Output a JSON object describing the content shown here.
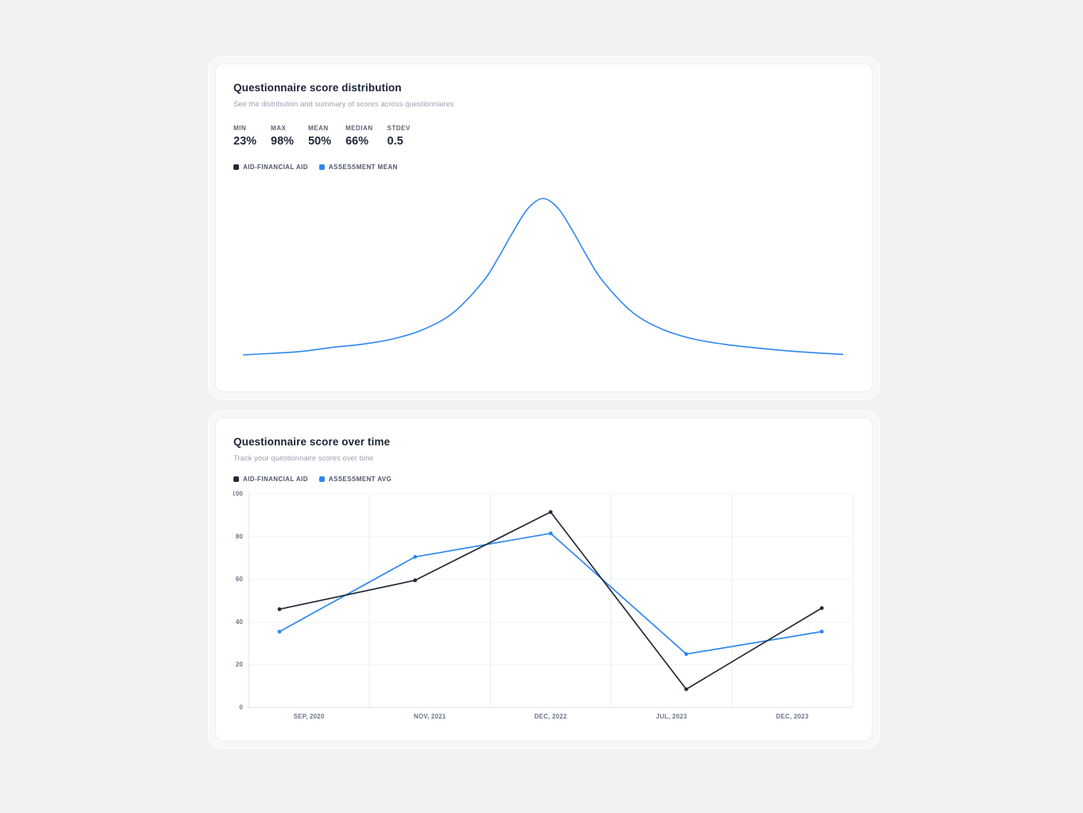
{
  "distribution": {
    "title": "Questionnaire score distribution",
    "subtitle": "See the distribution and summary of scores across questionnaires",
    "stats": [
      {
        "label": "MIN",
        "value": "23%"
      },
      {
        "label": "MAX",
        "value": "98%"
      },
      {
        "label": "MEAN",
        "value": "50%"
      },
      {
        "label": "MEDIAN",
        "value": "66%"
      },
      {
        "label": "STDEV",
        "value": "0.5"
      }
    ],
    "legend": [
      {
        "label": "AID-FINANCIAL AID",
        "color": "#232a36"
      },
      {
        "label": "ASSESSMENT MEAN",
        "color": "#2e87f0"
      }
    ]
  },
  "timeseries": {
    "title": "Questionnaire score over time",
    "subtitle": "Track your questionnaire scores over time",
    "legend": [
      {
        "label": "AID-FINANCIAL AID",
        "color": "#232a36"
      },
      {
        "label": "ASSESSMENT AVG",
        "color": "#2e87f0"
      }
    ]
  },
  "colors": {
    "series_dark": "#232a36",
    "series_blue": "#2e87f0",
    "grid_h": "#f1f3f6",
    "grid_v": "#e9ecf1",
    "axis": "#dfe3e9"
  },
  "chart_data": [
    {
      "type": "area",
      "title": "Questionnaire score distribution",
      "series_name": "ASSESSMENT MEAN",
      "line_color": "#2e87f0",
      "description": "Smooth bell-shaped density curve of questionnaire scores, peak at center, heavy symmetric tails, no visible axes",
      "summary": {
        "min": "23%",
        "max": "98%",
        "mean": "50%",
        "median": "66%",
        "stdev": "0.5"
      },
      "x_normalized": [
        0,
        0.05,
        0.1,
        0.15,
        0.2,
        0.25,
        0.3,
        0.35,
        0.4,
        0.425,
        0.45,
        0.475,
        0.5,
        0.525,
        0.55,
        0.575,
        0.6,
        0.65,
        0.7,
        0.75,
        0.8,
        0.85,
        0.9,
        0.95,
        1
      ],
      "density": [
        0.012,
        0.022,
        0.035,
        0.06,
        0.08,
        0.113,
        0.172,
        0.278,
        0.476,
        0.623,
        0.79,
        0.938,
        1.0,
        0.938,
        0.79,
        0.623,
        0.476,
        0.278,
        0.172,
        0.113,
        0.08,
        0.058,
        0.04,
        0.026,
        0.015
      ]
    },
    {
      "type": "line",
      "title": "Questionnaire score over time",
      "categories": [
        "SEP, 2020",
        "NOV, 2021",
        "DEC, 2022",
        "JUL, 2023",
        "DEC, 2023"
      ],
      "series": [
        {
          "name": "AID-FINANCIAL AID",
          "color": "#232a36",
          "values": [
            46,
            59.5,
            91.5,
            8.5,
            46.5
          ]
        },
        {
          "name": "ASSESSMENT AVG",
          "color": "#2e87f0",
          "values": [
            35.5,
            70.5,
            81.5,
            25,
            35.5
          ]
        }
      ],
      "ylim": [
        0,
        100
      ],
      "yticks": [
        0,
        20,
        40,
        60,
        80,
        100
      ],
      "grid": true,
      "legend_position": "top-left"
    }
  ]
}
